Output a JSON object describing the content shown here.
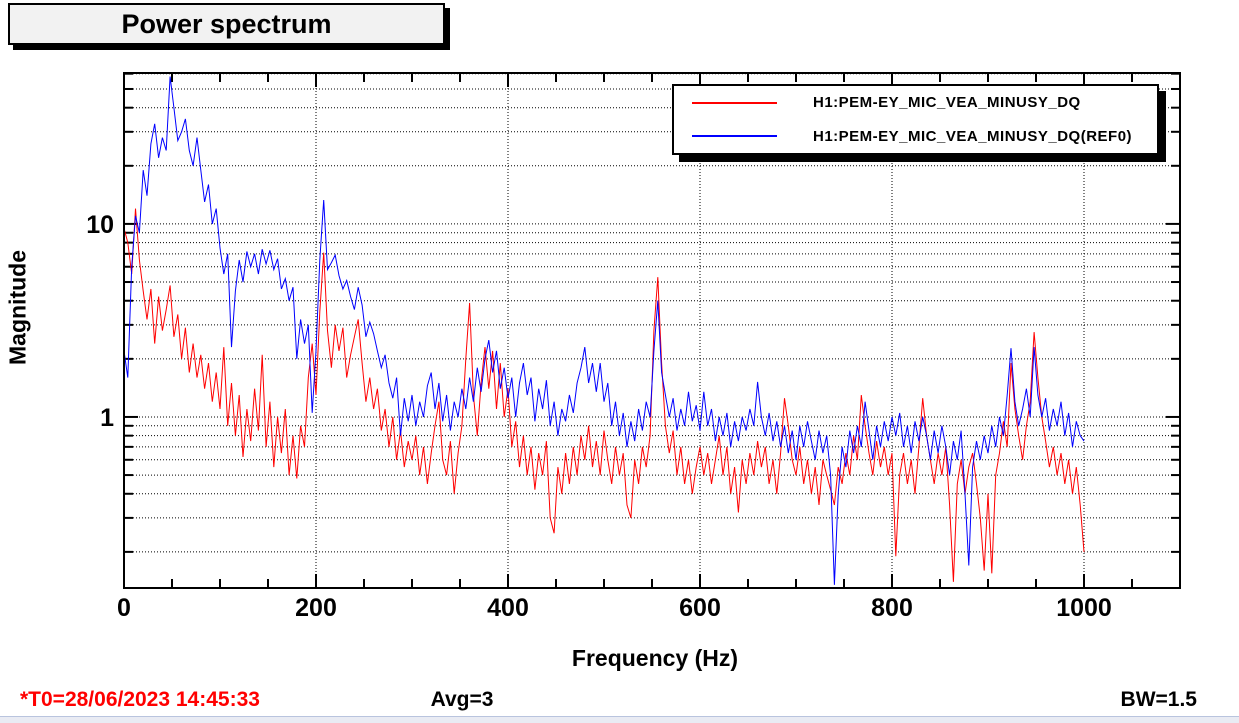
{
  "footer": {
    "t0_label": "*T0=28/06/2023 14:45:33",
    "avg_label": "Avg=3",
    "bw_label": "BW=1.5"
  },
  "colors": {
    "t0_text": "#ff0000",
    "trace_red": "#ff0000",
    "trace_blue": "#0000ff",
    "grid": "#000000",
    "title_box_bg": "#f2f2f2"
  },
  "chart_data": {
    "type": "line",
    "title": "Power spectrum",
    "xlabel": "Frequency (Hz)",
    "ylabel": "Magnitude",
    "yscale": "log",
    "grid": "dotted",
    "legend_position": "top-right",
    "xlim": [
      0,
      1100
    ],
    "ylim": [
      0.13,
      60.5
    ],
    "x_major_ticks": [
      0,
      200,
      400,
      600,
      800,
      1000
    ],
    "x_minor_step": 50,
    "y_labeled_ticks": [
      1,
      10
    ],
    "x_start": 0,
    "x_step": 4,
    "series": [
      {
        "name": "H1:PEM-EY_MIC_VEA_MINUSY_DQ",
        "color": "#ff0000",
        "values": [
          9.5,
          8,
          5.5,
          12,
          6.5,
          4.5,
          3.2,
          4.6,
          2.4,
          4.2,
          2.8,
          3.6,
          4.8,
          2.6,
          3.4,
          2,
          2.9,
          1.7,
          2.4,
          1.6,
          2.1,
          1.4,
          1.9,
          1.2,
          1.7,
          1.1,
          2.3,
          0.9,
          1.5,
          0.8,
          1.3,
          0.62,
          1.1,
          0.75,
          1.4,
          0.85,
          2.1,
          0.7,
          1.2,
          0.55,
          1,
          0.65,
          1.1,
          0.5,
          0.8,
          0.48,
          0.9,
          0.7,
          1.6,
          2.4,
          1.3,
          3.5,
          7.1,
          2.8,
          1.8,
          3,
          2.2,
          2.9,
          1.6,
          2.1,
          2.6,
          3.2,
          1.9,
          1.2,
          1.6,
          1.1,
          1.4,
          0.85,
          1.1,
          0.7,
          1,
          0.6,
          0.85,
          0.55,
          0.75,
          0.6,
          0.8,
          0.5,
          0.7,
          0.45,
          0.65,
          0.9,
          1.2,
          0.6,
          0.5,
          0.75,
          0.4,
          0.65,
          0.9,
          2,
          3.9,
          1.3,
          0.8,
          1.5,
          2.3,
          1.4,
          2.2,
          1.1,
          1.9,
          1,
          1.4,
          0.7,
          0.95,
          0.55,
          0.8,
          0.5,
          0.7,
          0.42,
          0.65,
          0.5,
          0.75,
          0.3,
          0.25,
          0.55,
          0.4,
          0.65,
          0.45,
          0.7,
          0.5,
          0.8,
          0.6,
          0.9,
          0.55,
          0.75,
          0.5,
          0.85,
          0.6,
          0.45,
          0.7,
          0.5,
          0.65,
          0.35,
          0.3,
          0.6,
          0.45,
          0.7,
          0.55,
          0.8,
          2.8,
          5.3,
          1.9,
          0.9,
          0.65,
          0.85,
          0.5,
          0.7,
          0.45,
          0.6,
          0.4,
          0.55,
          0.7,
          0.5,
          0.65,
          0.45,
          0.6,
          0.8,
          0.5,
          0.7,
          0.4,
          0.55,
          0.32,
          0.6,
          0.45,
          0.65,
          0.5,
          0.75,
          0.55,
          0.7,
          0.45,
          0.6,
          0.4,
          0.65,
          1.25,
          0.9,
          0.6,
          0.5,
          0.7,
          0.45,
          0.6,
          0.4,
          0.55,
          0.35,
          0.6,
          0.5,
          0.42,
          0.35,
          0.55,
          0.45,
          0.65,
          0.5,
          0.8,
          0.6,
          1.3,
          0.9,
          0.65,
          0.5,
          0.75,
          0.55,
          0.7,
          0.5,
          0.65,
          0.19,
          0.5,
          0.65,
          0.45,
          0.6,
          0.4,
          0.7,
          1.25,
          0.8,
          0.6,
          0.45,
          0.65,
          0.5,
          0.7,
          0.35,
          0.14,
          0.45,
          0.6,
          0.4,
          0.55,
          0.65,
          0.45,
          0.3,
          0.16,
          0.4,
          0.155,
          0.5,
          0.65,
          0.95,
          0.7,
          1.9,
          1.1,
          0.8,
          0.6,
          0.9,
          1.2,
          2.75,
          1.6,
          1,
          0.75,
          0.55,
          0.7,
          0.5,
          0.65,
          0.45,
          0.6,
          0.4,
          0.55,
          0.35,
          0.2
        ]
      },
      {
        "name": "H1:PEM-EY_MIC_VEA_MINUSY_DQ(REF0)",
        "color": "#0000ff",
        "values": [
          2.2,
          1.6,
          6,
          11,
          9,
          19,
          14,
          26,
          33,
          22,
          28,
          24,
          58,
          40,
          27,
          30,
          35,
          24,
          20,
          28,
          19,
          13,
          16,
          10,
          12,
          7.5,
          5.5,
          7,
          2.3,
          4.5,
          6.5,
          5,
          7.2,
          6,
          7,
          5.5,
          7.4,
          6.2,
          7.3,
          5.8,
          6.6,
          4.6,
          5.2,
          4,
          4.7,
          2,
          3.2,
          2.4,
          3,
          1.05,
          2.2,
          6.5,
          13.3,
          5.8,
          6.3,
          6.9,
          5.4,
          4.6,
          5.1,
          4.2,
          3.6,
          4.7,
          3.8,
          2.6,
          3.1,
          2.7,
          2.2,
          1.8,
          2.1,
          1.5,
          1.25,
          1.6,
          0.8,
          1.25,
          0.95,
          1.3,
          0.9,
          1.2,
          1,
          1.45,
          1.7,
          1.1,
          1.5,
          0.95,
          1.3,
          0.85,
          1.2,
          1,
          1.4,
          1.1,
          1.6,
          1.2,
          1.8,
          1.35,
          2,
          2.5,
          1.7,
          2.2,
          1.4,
          1.8,
          1.25,
          1.6,
          1,
          1.5,
          1.9,
          1.3,
          1.6,
          0.95,
          1.4,
          1.1,
          1.55,
          0.9,
          1.2,
          0.8,
          1.1,
          0.95,
          1.3,
          1.05,
          1.5,
          1.8,
          2.3,
          1.5,
          1.9,
          1.35,
          1.9,
          1.2,
          1.5,
          0.9,
          1.2,
          0.8,
          1.05,
          0.7,
          0.95,
          0.75,
          1.1,
          0.85,
          1.2,
          1,
          2.2,
          4,
          1.7,
          1.3,
          1,
          1.25,
          0.85,
          1.1,
          0.9,
          1.35,
          0.95,
          1.15,
          0.85,
          1.35,
          0.9,
          1.1,
          0.75,
          1,
          0.8,
          1.05,
          0.7,
          0.95,
          0.75,
          1,
          0.85,
          1.1,
          0.9,
          1.52,
          1,
          0.8,
          1.05,
          0.75,
          0.95,
          0.7,
          0.9,
          0.65,
          0.85,
          0.6,
          0.9,
          0.7,
          0.95,
          0.75,
          0.6,
          0.85,
          0.65,
          0.8,
          0.5,
          0.135,
          0.4,
          0.7,
          0.55,
          0.85,
          0.65,
          0.9,
          0.7,
          1.2,
          0.85,
          0.6,
          0.9,
          0.7,
          0.95,
          0.75,
          1,
          0.8,
          1.05,
          0.7,
          0.9,
          0.65,
          0.95,
          0.75,
          1,
          0.8,
          0.6,
          0.85,
          0.65,
          0.9,
          0.7,
          0.5,
          0.75,
          0.6,
          0.85,
          0.4,
          0.17,
          0.55,
          0.75,
          0.6,
          0.8,
          0.65,
          0.9,
          0.7,
          1,
          0.8,
          1.3,
          2.27,
          1.2,
          0.9,
          1.1,
          1.4,
          1,
          2.3,
          1.3,
          1,
          1.25,
          0.85,
          1.1,
          0.9,
          1.2,
          0.8,
          1.05,
          0.7,
          0.95,
          0.8,
          0.75
        ]
      }
    ]
  }
}
